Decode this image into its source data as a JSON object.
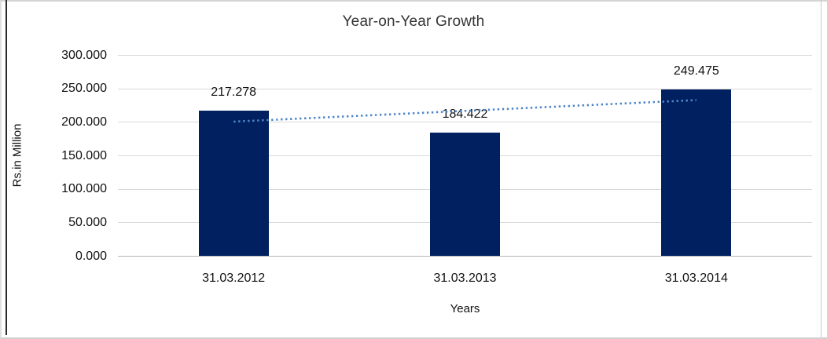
{
  "chart_data": {
    "type": "bar",
    "title": "Year-on-Year Growth",
    "xlabel": "Years",
    "ylabel": "Rs.in Million",
    "categories": [
      "31.03.2012",
      "31.03.2013",
      "31.03.2014"
    ],
    "values": [
      217.278,
      184.422,
      249.475
    ],
    "value_labels": [
      "217.278",
      "184.422",
      "249.475"
    ],
    "ylim": [
      0,
      300
    ],
    "yticks": [
      0,
      50,
      100,
      150,
      200,
      250,
      300
    ],
    "ytick_labels": [
      "0.000",
      "50.000",
      "100.000",
      "150.000",
      "200.000",
      "250.000",
      "300.000"
    ],
    "grid": true,
    "legend": "none",
    "bar_color": "#002060",
    "gridline_color": "#d9d9d9",
    "zero_line_color": "#b7b7b7",
    "trendline": {
      "type": "linear",
      "style": "dotted",
      "color": "#4f86c6"
    }
  }
}
